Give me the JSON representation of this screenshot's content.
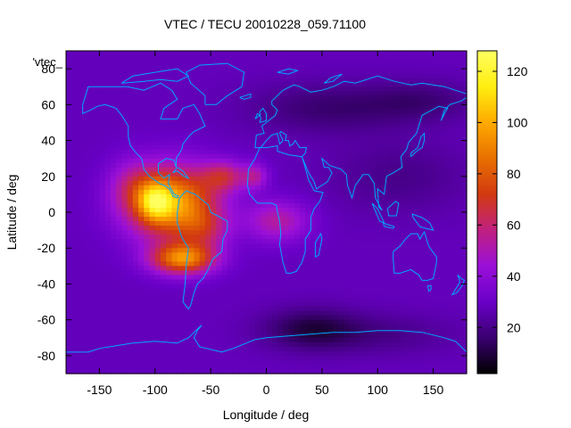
{
  "chart_data": {
    "type": "heatmap",
    "title": "VTEC / TECU 20010228_059.71100",
    "xlabel": "Longitude / deg",
    "ylabel": "Latitude / deg",
    "legend_label": "'vtec_",
    "xlim": [
      -180,
      180
    ],
    "ylim": [
      -90,
      90
    ],
    "x_ticks": [
      -150,
      -100,
      -50,
      0,
      50,
      100,
      150
    ],
    "y_ticks": [
      -80,
      -60,
      -40,
      -20,
      0,
      20,
      40,
      60,
      80
    ],
    "colorbar": {
      "range": [
        2,
        128
      ],
      "ticks": [
        20,
        40,
        60,
        80,
        100,
        120
      ],
      "colormap": [
        "#000000",
        "#3a0070",
        "#6a00c8",
        "#9a10d8",
        "#c02080",
        "#d23a10",
        "#e87000",
        "#ffaa00",
        "#ffee10",
        "#ffff60"
      ]
    },
    "grid": false,
    "coastline_color": "#00a8ff",
    "background_level": 28,
    "components": [
      {
        "lon": -85,
        "lat": 5,
        "sig_lon": 28,
        "sig_lat": 14,
        "amp": 72
      },
      {
        "lon": -100,
        "lat": 6,
        "sig_lon": 10,
        "sig_lat": 7,
        "amp": 38
      },
      {
        "lon": -75,
        "lat": -26,
        "sig_lon": 20,
        "sig_lat": 6,
        "amp": 62
      },
      {
        "lon": -38,
        "lat": 20,
        "sig_lon": 14,
        "sig_lat": 6,
        "amp": 30
      },
      {
        "lon": -10,
        "lat": 20,
        "sig_lon": 8,
        "sig_lat": 5,
        "amp": 22
      },
      {
        "lon": 10,
        "lat": -5,
        "sig_lon": 20,
        "sig_lat": 8,
        "amp": 25
      },
      {
        "lon": -55,
        "lat": -10,
        "sig_lon": 15,
        "sig_lat": 8,
        "amp": 20
      },
      {
        "lon": -120,
        "lat": 15,
        "sig_lon": 15,
        "sig_lat": 10,
        "amp": 15
      },
      {
        "lon": 55,
        "lat": 58,
        "sig_lon": 50,
        "sig_lat": 10,
        "amp": -12
      },
      {
        "lon": 140,
        "lat": 62,
        "sig_lon": 35,
        "sig_lat": 8,
        "amp": -10
      },
      {
        "lon": 120,
        "lat": 20,
        "sig_lon": 45,
        "sig_lat": 15,
        "amp": -8
      },
      {
        "lon": 40,
        "lat": -65,
        "sig_lon": 30,
        "sig_lat": 8,
        "amp": -16
      },
      {
        "lon": 100,
        "lat": -68,
        "sig_lon": 50,
        "sig_lat": 8,
        "amp": -8
      }
    ]
  }
}
